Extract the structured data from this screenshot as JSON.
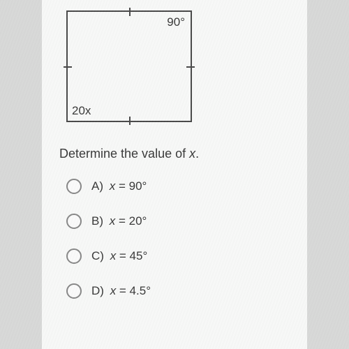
{
  "diagram": {
    "type": "square-angles",
    "top_right_label": "90°",
    "bottom_left_label": "20x",
    "border_color": "#4a4a4a",
    "square_width": 180,
    "square_height": 160,
    "label_fontsize": 17
  },
  "question": {
    "prefix": "Determine the value of ",
    "variable": "x",
    "suffix": "."
  },
  "options": [
    {
      "letter": "A)",
      "var": "x",
      "rest": " = 90°"
    },
    {
      "letter": "B)",
      "var": "x",
      "rest": " = 20°"
    },
    {
      "letter": "C)",
      "var": "x",
      "rest": " = 45°"
    },
    {
      "letter": "D)",
      "var": "x",
      "rest": " = 4.5°"
    }
  ],
  "colors": {
    "page_bg": "#d8d9d8",
    "content_bg": "#f7f8f7",
    "text": "#3a3a3a",
    "radio_border": "#888888"
  }
}
